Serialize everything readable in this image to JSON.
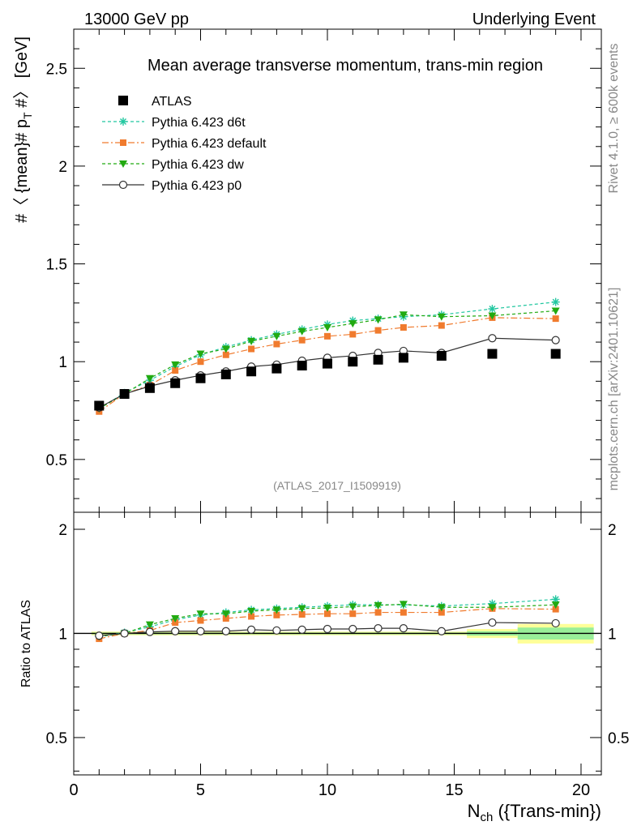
{
  "header": {
    "left": "13000 GeV pp",
    "right": "Underlying Event"
  },
  "side_labels": {
    "rivet": "Rivet 4.1.0, ≥ 600k events",
    "mcplots": "mcplots.cern.ch [arXiv:2401.10621]"
  },
  "chart_data": [
    {
      "type": "line",
      "panel": "main",
      "title": "Mean average transverse momentum, trans-min region",
      "ylabel": "#〈 {mean}# p_T #〉 [GeV]",
      "ylabel_main": "#〈 {mean}# p",
      "ylabel_sub": "T",
      "ylabel_tail": " #〉 [GeV]",
      "xlabel_main": "N",
      "xlabel_sub": "ch",
      "xlabel_tail": " ({Trans-min})",
      "analysis_tag": "(ATLAS_2017_I1509919)",
      "xlim": [
        0,
        20.8
      ],
      "ylim": [
        0.23,
        2.7
      ],
      "yticks": [
        "0.5",
        "1",
        "1.5",
        "2",
        "2.5"
      ],
      "ytick_values": [
        0.5,
        1,
        1.5,
        2,
        2.5
      ],
      "x": [
        1,
        2,
        3,
        4,
        5,
        6,
        7,
        8,
        9,
        10,
        11,
        12,
        13,
        14.5,
        16.5,
        19
      ],
      "series": [
        {
          "name": "ATLAS",
          "style": "data",
          "color": "#000000",
          "values": [
            0.775,
            0.835,
            0.865,
            0.89,
            0.915,
            0.935,
            0.95,
            0.965,
            0.98,
            0.99,
            1.0,
            1.01,
            1.02,
            1.03,
            1.04,
            1.04
          ]
        },
        {
          "name": "Pythia 6.423 d6t",
          "style": "star",
          "color": "#22c7a0",
          "values": [
            0.76,
            0.84,
            0.905,
            0.975,
            1.035,
            1.075,
            1.11,
            1.14,
            1.165,
            1.19,
            1.21,
            1.22,
            1.23,
            1.24,
            1.27,
            1.305
          ]
        },
        {
          "name": "Pythia 6.423 default",
          "style": "square",
          "color": "#f07b2e",
          "values": [
            0.745,
            0.835,
            0.88,
            0.955,
            1.0,
            1.035,
            1.065,
            1.09,
            1.11,
            1.13,
            1.14,
            1.16,
            1.175,
            1.185,
            1.225,
            1.22
          ]
        },
        {
          "name": "Pythia 6.423 dw",
          "style": "triangle",
          "color": "#22aa11",
          "values": [
            0.76,
            0.835,
            0.915,
            0.985,
            1.04,
            1.065,
            1.105,
            1.13,
            1.155,
            1.175,
            1.195,
            1.215,
            1.24,
            1.23,
            1.235,
            1.26
          ]
        },
        {
          "name": "Pythia 6.423 p0",
          "style": "circle",
          "color": "#333333",
          "values": [
            0.765,
            0.835,
            0.875,
            0.905,
            0.93,
            0.95,
            0.975,
            0.985,
            1.005,
            1.02,
            1.03,
            1.045,
            1.055,
            1.045,
            1.12,
            1.11
          ]
        }
      ],
      "legend_position": "top-left"
    },
    {
      "type": "line",
      "panel": "ratio",
      "ylabel": "Ratio to ATLAS",
      "xlim": [
        0,
        20.8
      ],
      "ylim": [
        0.39,
        2.24
      ],
      "yticks": [
        "0.5",
        "1",
        "2"
      ],
      "ytick_values": [
        0.5,
        1,
        2
      ],
      "xticks": [
        "0",
        "5",
        "10",
        "15",
        "20"
      ],
      "xtick_values": [
        0,
        5,
        10,
        15,
        20
      ],
      "x": [
        1,
        2,
        3,
        4,
        5,
        6,
        7,
        8,
        9,
        10,
        11,
        12,
        13,
        14.5,
        16.5,
        19
      ],
      "series": [
        {
          "name": "Pythia 6.423 d6t",
          "values": [
            0.98,
            1.005,
            1.045,
            1.095,
            1.13,
            1.15,
            1.17,
            1.18,
            1.19,
            1.2,
            1.21,
            1.21,
            1.21,
            1.2,
            1.22,
            1.255
          ]
        },
        {
          "name": "Pythia 6.423 default",
          "values": [
            0.965,
            1.0,
            1.02,
            1.075,
            1.09,
            1.105,
            1.12,
            1.13,
            1.135,
            1.14,
            1.14,
            1.15,
            1.15,
            1.15,
            1.18,
            1.175
          ]
        },
        {
          "name": "Pythia 6.423 dw",
          "values": [
            0.98,
            1.0,
            1.06,
            1.105,
            1.14,
            1.14,
            1.16,
            1.17,
            1.18,
            1.185,
            1.195,
            1.205,
            1.215,
            1.19,
            1.19,
            1.21
          ]
        },
        {
          "name": "Pythia 6.423 p0",
          "values": [
            0.985,
            1.0,
            1.01,
            1.015,
            1.015,
            1.015,
            1.025,
            1.02,
            1.025,
            1.03,
            1.03,
            1.035,
            1.035,
            1.015,
            1.075,
            1.07
          ]
        }
      ],
      "reference_line": 1
    }
  ]
}
